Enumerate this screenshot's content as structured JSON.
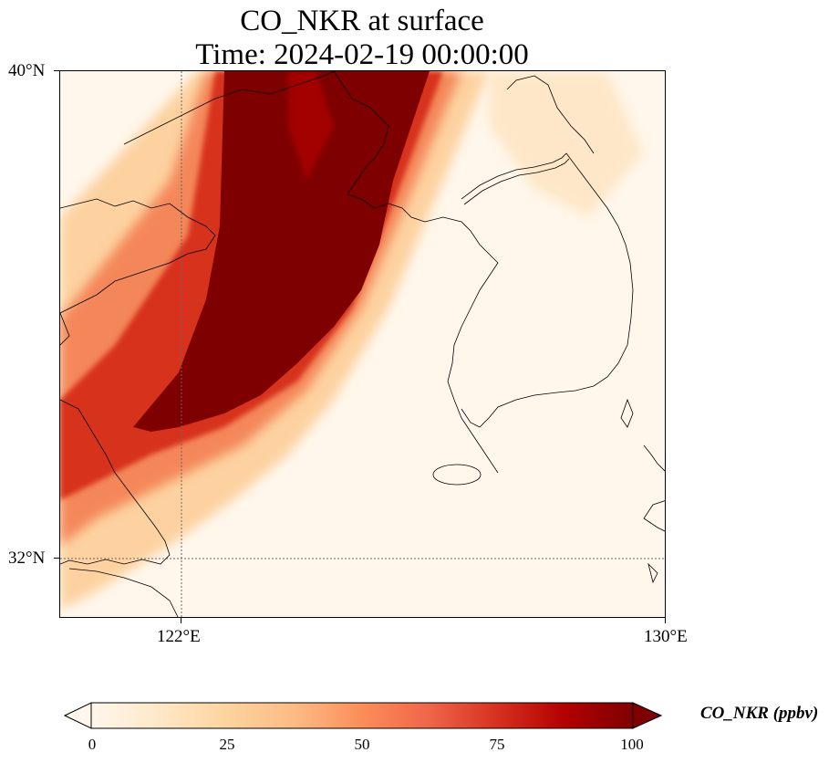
{
  "title": {
    "line1": "CO_NKR at surface",
    "line2": "Time: 2024-02-19 00:00:00"
  },
  "map": {
    "variable": "CO_NKR",
    "level": "surface",
    "projection": "PlateCarree",
    "lon_range": [
      120,
      130
    ],
    "lat_range": [
      31,
      40
    ],
    "gridlines": "dotted",
    "lat_ticks": [
      "40°N",
      "32°N"
    ],
    "lon_ticks": [
      "122°E",
      "130°E"
    ],
    "coastline_color": "#000000",
    "plume_core_color": "#7f0000"
  },
  "colorbar": {
    "label": "CO_NKR (ppbv)",
    "min": 0,
    "max": 100,
    "extend": "both",
    "cmap": "OrRd",
    "ticks": [
      "0",
      "25",
      "50",
      "75",
      "100"
    ],
    "stops": [
      "#fff7ec",
      "#fee8c8",
      "#fdd49e",
      "#fdbb84",
      "#fc8d59",
      "#ef6548",
      "#d7301f",
      "#b30000",
      "#7f0000"
    ]
  }
}
